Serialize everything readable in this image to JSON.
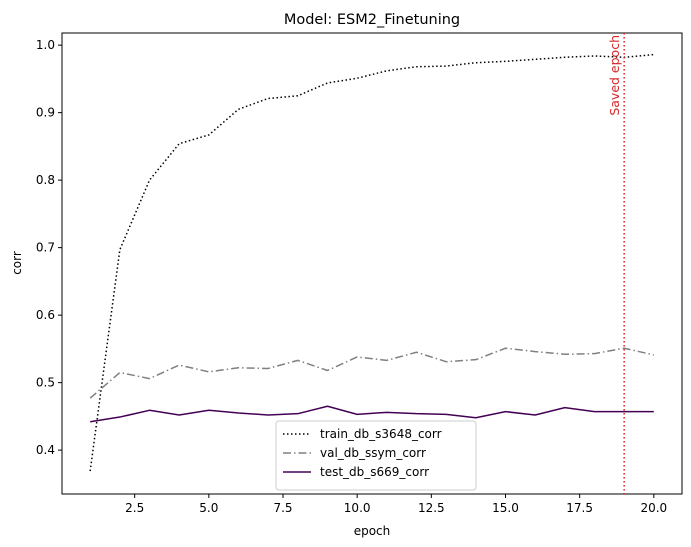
{
  "chart_data": {
    "type": "line",
    "title": "Model: ESM2_Finetuning",
    "xlabel": "epoch",
    "ylabel": "corr",
    "xlim": [
      0.05,
      20.95
    ],
    "ylim": [
      0.335,
      1.018
    ],
    "x_ticks": [
      2.5,
      5.0,
      7.5,
      10.0,
      12.5,
      15.0,
      17.5,
      20.0
    ],
    "x_tick_labels": [
      "2.5",
      "5.0",
      "7.5",
      "10.0",
      "12.5",
      "15.0",
      "17.5",
      "20.0"
    ],
    "y_ticks": [
      0.4,
      0.5,
      0.6,
      0.7,
      0.8,
      0.9,
      1.0
    ],
    "y_tick_labels": [
      "0.4",
      "0.5",
      "0.6",
      "0.7",
      "0.8",
      "0.9",
      "1.0"
    ],
    "grid": false,
    "legend_position": "bottom-center",
    "x": [
      1,
      2,
      3,
      4,
      5,
      6,
      7,
      8,
      9,
      10,
      11,
      12,
      13,
      14,
      15,
      16,
      17,
      18,
      19,
      20
    ],
    "series": [
      {
        "name": "train_db_s3648_corr",
        "color": "#000000",
        "style": "dotted",
        "values": [
          0.369,
          0.697,
          0.8,
          0.854,
          0.867,
          0.905,
          0.921,
          0.925,
          0.944,
          0.951,
          0.962,
          0.968,
          0.969,
          0.974,
          0.976,
          0.979,
          0.982,
          0.984,
          0.982,
          0.986
        ]
      },
      {
        "name": "val_db_ssym_corr",
        "color": "#808080",
        "style": "dashdot",
        "values": [
          0.477,
          0.515,
          0.506,
          0.526,
          0.516,
          0.522,
          0.521,
          0.533,
          0.518,
          0.538,
          0.533,
          0.545,
          0.531,
          0.534,
          0.551,
          0.546,
          0.542,
          0.543,
          0.551,
          0.541
        ]
      },
      {
        "name": "test_db_s669_corr",
        "color": "#440154",
        "style": "solid",
        "values": [
          0.442,
          0.449,
          0.459,
          0.452,
          0.459,
          0.455,
          0.452,
          0.454,
          0.465,
          0.453,
          0.456,
          0.454,
          0.453,
          0.448,
          0.457,
          0.452,
          0.463,
          0.457,
          0.457,
          0.457
        ]
      }
    ],
    "annotations": [
      {
        "type": "vline",
        "x": 19,
        "color": "#d62728",
        "style": "dotted",
        "text": "Saved epoch"
      }
    ]
  }
}
